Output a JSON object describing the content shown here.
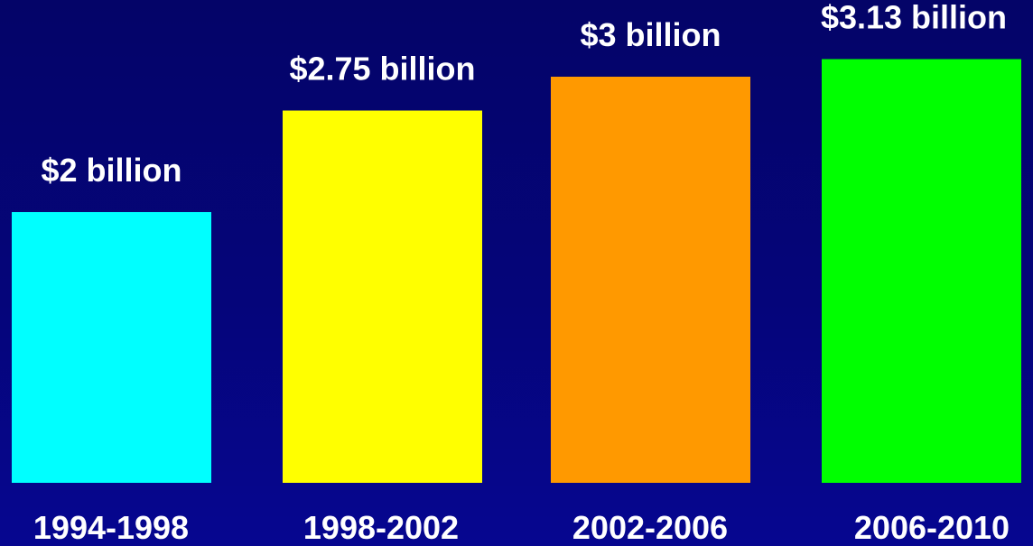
{
  "chart_data": {
    "type": "bar",
    "categories": [
      "1994-1998",
      "1998-2002",
      "2002-2006",
      "2006-2010"
    ],
    "values": [
      2,
      2.75,
      3,
      3.13
    ],
    "data_labels": [
      "$2 billion",
      "$2.75 billion",
      "$3 billion",
      "$3.13 billion"
    ],
    "colors": [
      "#00ffff",
      "#ffff00",
      "#ff9900",
      "#00ff00"
    ],
    "ylim": [
      0,
      3.5
    ],
    "grid": false,
    "background": "#04047a",
    "title": "",
    "xlabel": "",
    "ylabel": ""
  }
}
